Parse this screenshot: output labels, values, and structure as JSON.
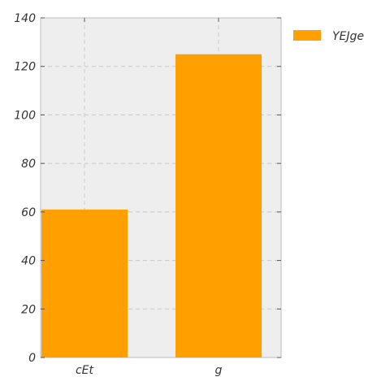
{
  "chart_data": {
    "type": "bar",
    "categories": [
      "cEt",
      "g"
    ],
    "series": [
      {
        "name": "YEJge",
        "values": [
          61,
          125
        ],
        "color": "#ffa000"
      }
    ],
    "ylim": [
      0,
      140
    ],
    "y_ticks": [
      0,
      20,
      40,
      60,
      80,
      100,
      120,
      140
    ],
    "grid": true,
    "legend_position": "right",
    "background_color": "#eeeeee"
  }
}
